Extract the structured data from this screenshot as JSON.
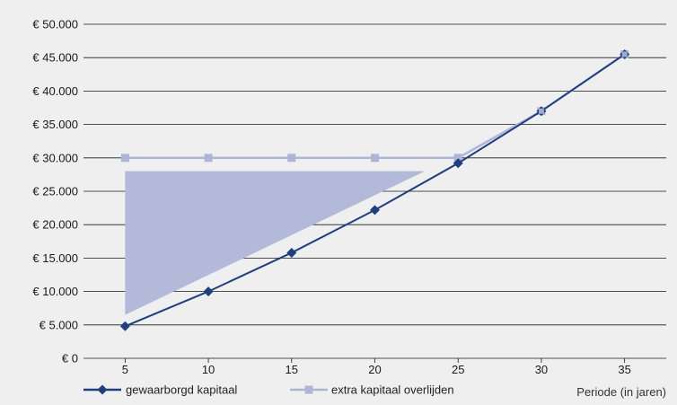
{
  "chart_data": {
    "type": "line",
    "x": [
      5,
      10,
      15,
      20,
      25,
      30,
      35
    ],
    "categories": [
      "5",
      "10",
      "15",
      "20",
      "25",
      "30",
      "35"
    ],
    "xlabel": "Periode (in jaren)",
    "ylabel": "",
    "ylim": [
      0,
      50000
    ],
    "yticks": [
      0,
      5000,
      10000,
      15000,
      20000,
      25000,
      30000,
      35000,
      40000,
      45000,
      50000
    ],
    "ytick_labels": [
      "€ 0",
      "€ 5.000",
      "€ 10.000",
      "€ 15.000",
      "€ 20.000",
      "€ 25.000",
      "€ 30.000",
      "€ 35.000",
      "€ 40.000",
      "€ 45.000",
      "€ 50.000"
    ],
    "grid": true,
    "legend_position": "bottom-left",
    "series": [
      {
        "name": "gewaarborgd kapitaal",
        "color": "#1f3f7f",
        "marker": "diamond",
        "values": [
          4800,
          10000,
          15800,
          22200,
          29200,
          37000,
          45500
        ]
      },
      {
        "name": "extra kapitaal overlijden",
        "color": "#aeb6d6",
        "marker": "square",
        "values": [
          30000,
          30000,
          30000,
          30000,
          30000,
          37000,
          45500
        ]
      }
    ],
    "annotation_area": {
      "color": "#b3b9d9",
      "points": [
        [
          5,
          28000
        ],
        [
          23,
          28000
        ],
        [
          5,
          6500
        ]
      ]
    }
  }
}
